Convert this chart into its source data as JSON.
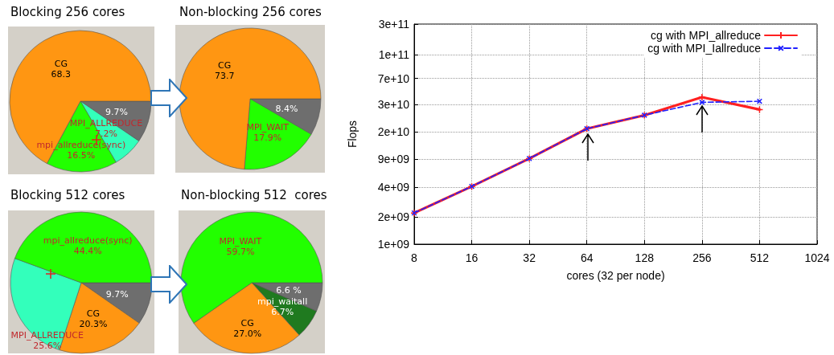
{
  "chart_data": [
    {
      "type": "pie",
      "title": "Blocking 256 cores",
      "categories": [
        null,
        "MPI_ALLREDUCE",
        "mpi_allreduce(sync)",
        "CG"
      ],
      "values": [
        9.7,
        7.2,
        16.5,
        68.3
      ],
      "colors": [
        "#6e6e6e",
        "#33ffbb",
        "#22ff00",
        "#ff9612"
      ],
      "value_labels": [
        "9.7%",
        "7.2%",
        "16.5%",
        "68.3"
      ]
    },
    {
      "type": "pie",
      "title": "Non-blocking 256 cores",
      "categories": [
        null,
        "MPI_WAIT",
        "CG"
      ],
      "values": [
        8.4,
        17.9,
        73.7
      ],
      "colors": [
        "#6e6e6e",
        "#22ff00",
        "#ff9612"
      ],
      "value_labels": [
        "8.4%",
        "17.9%",
        "73.7"
      ]
    },
    {
      "type": "pie",
      "title": "Blocking 512 cores",
      "categories": [
        null,
        "CG",
        "MPI_ALLREDUCE",
        "mpi_allreduce(sync)"
      ],
      "values": [
        9.7,
        20.3,
        25.6,
        44.4
      ],
      "colors": [
        "#6e6e6e",
        "#ff9612",
        "#33ffbb",
        "#22ff00"
      ],
      "value_labels": [
        "9.7%",
        "20.3%",
        "25.6%",
        "44.4%"
      ]
    },
    {
      "type": "pie",
      "title": "Non-blocking 512  cores",
      "categories": [
        null,
        "mpi_waitall",
        "CG",
        "MPI_WAIT"
      ],
      "values": [
        6.6,
        6.7,
        27.0,
        59.7
      ],
      "colors": [
        "#6e6e6e",
        "#1f7a1f",
        "#ff9612",
        "#22ff00"
      ],
      "value_labels": [
        "6.6 %",
        "6.7%",
        "27.0%",
        "59.7%"
      ]
    },
    {
      "type": "line",
      "xlabel": "cores (32 per node)",
      "ylabel": "Flops",
      "x": [
        8,
        16,
        32,
        64,
        128,
        256,
        512
      ],
      "log": "xy",
      "series": [
        {
          "name": "cg with MPI_allreduce",
          "color": "#ff2020",
          "line_style": "solid",
          "marker": "cross",
          "values": [
            2200000000.0,
            4300000000.0,
            8700000000.0,
            18500000000.0,
            26000000000.0,
            41000000000.0,
            30000000000.0
          ]
        },
        {
          "name": "cg with MPI_Iallreduce",
          "color": "#2020ff",
          "line_style": "dashed",
          "marker": "cross",
          "values": [
            2200000000.0,
            4300000000.0,
            8700000000.0,
            18500000000.0,
            26000000000.0,
            36000000000.0,
            37000000000.0
          ]
        }
      ],
      "xlim": [
        8,
        1024
      ],
      "xticks": [
        8,
        16,
        32,
        64,
        128,
        256,
        512,
        1024
      ],
      "ylim": [
        1000000000.0,
        260000000000.0
      ],
      "yticks": [
        {
          "value": 1000000000.0,
          "label": "1e+09"
        },
        {
          "value": 2000000000.0,
          "label": "2e+09"
        },
        {
          "value": 4200000000.0,
          "label": "4e+09"
        },
        {
          "value": 8600000000.0,
          "label": "9e+09"
        },
        {
          "value": 17000000000.0,
          "label": "2e+10"
        },
        {
          "value": 34000000000.0,
          "label": "3e+10"
        },
        {
          "value": 66000000000.0,
          "label": "7e+10"
        },
        {
          "value": 120000000000.0,
          "label": "1e+11"
        },
        {
          "value": 260000000000.0,
          "label": "3e+11"
        }
      ],
      "grid": true,
      "legend": "top right"
    }
  ]
}
